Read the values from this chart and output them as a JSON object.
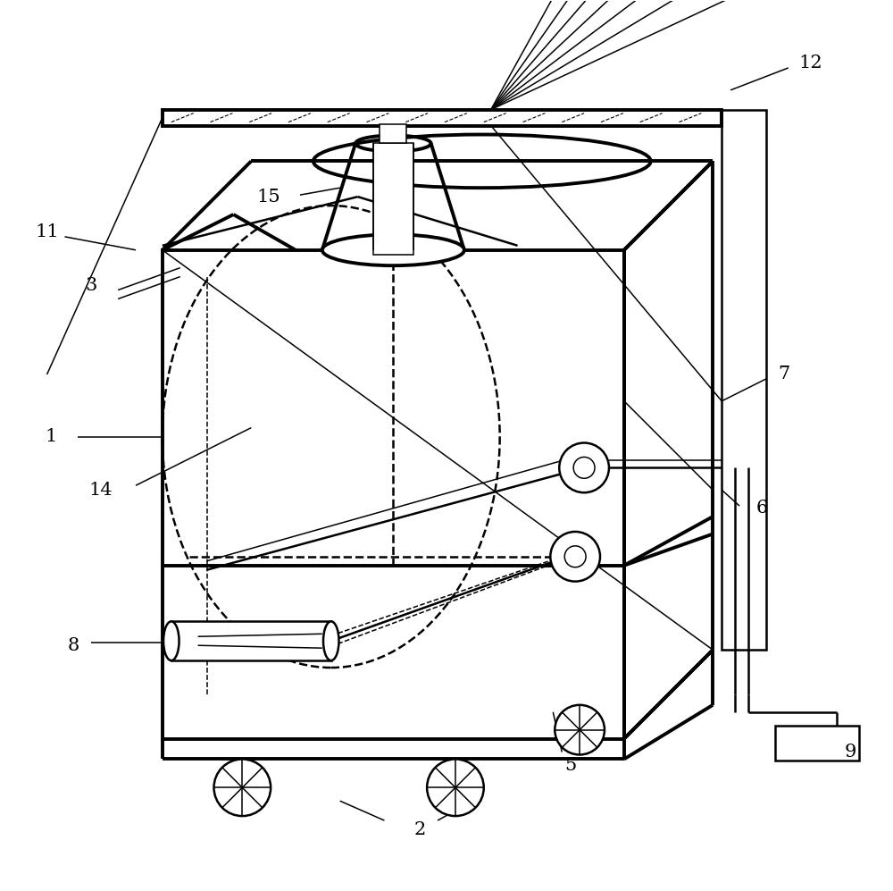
{
  "bg_color": "#ffffff",
  "line_color": "#000000",
  "label_fontsize": 15,
  "fig_width": 10.0,
  "fig_height": 9.97
}
